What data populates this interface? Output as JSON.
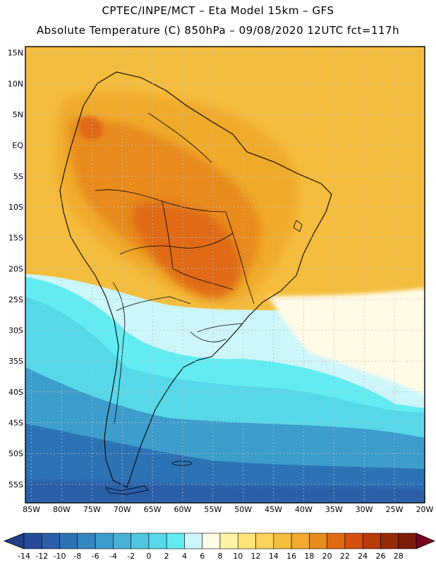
{
  "header": {
    "line1": "CPTEC/INPE/MCT –  Eta Model 15km – GFS",
    "line2": "Absolute Temperature (C) 850hPa – 09/08/2020 12UTC fct=117h"
  },
  "axes": {
    "lat_labels": [
      "15N",
      "10N",
      "5N",
      "EQ",
      "5S",
      "10S",
      "15S",
      "20S",
      "25S",
      "30S",
      "35S",
      "40S",
      "45S",
      "50S",
      "55S"
    ],
    "lon_labels": [
      "85W",
      "80W",
      "75W",
      "70W",
      "65W",
      "60W",
      "55W",
      "50W",
      "45W",
      "40W",
      "35W",
      "30W",
      "25W",
      "20W"
    ],
    "lat_range": [
      -58,
      16
    ],
    "lon_range": [
      -86,
      -20
    ]
  },
  "colorbar": {
    "ticks": [
      "-14",
      "-12",
      "-10",
      "-8",
      "-6",
      "-4",
      "-2",
      "0",
      "2",
      "4",
      "6",
      "8",
      "10",
      "12",
      "14",
      "16",
      "18",
      "20",
      "22",
      "24",
      "26",
      "28"
    ],
    "colors": [
      "#274a9a",
      "#2a5ea8",
      "#2c73b6",
      "#3488c2",
      "#3d9dcc",
      "#47b2d6",
      "#4ec6df",
      "#56d8e8",
      "#62ecf2",
      "#ccf6fa",
      "#fffbe6",
      "#fff3a6",
      "#ffe47a",
      "#fbd25a",
      "#f5bd3e",
      "#f0aa2c",
      "#e88a1e",
      "#e06a12",
      "#d4500c",
      "#b83a08",
      "#962a06",
      "#7a1c06"
    ],
    "under_color": "#1f3f86",
    "over_color": "#800020"
  },
  "fields": {
    "colors": {
      "deep_south": "#2c73b6",
      "mid_south": "#3d9dcc",
      "cyan": "#56d8e8",
      "bright_cyan": "#62ecf2",
      "pale": "#ccf6fa",
      "cream": "#fffbe6",
      "yellow": "#fbd25a",
      "gold": "#f5bd3e",
      "orange": "#f0aa2c",
      "dark_orange": "#e88a1e",
      "hot": "#e06a12"
    }
  }
}
